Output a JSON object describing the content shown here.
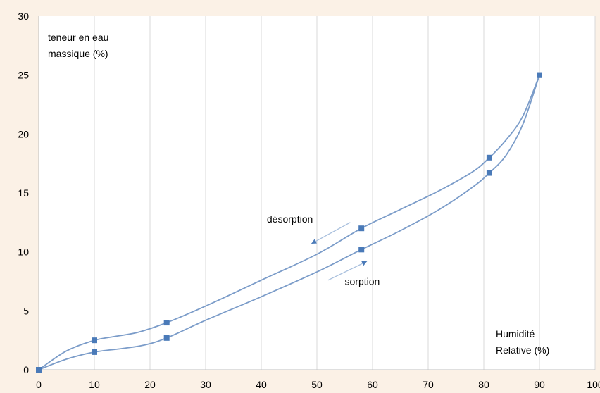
{
  "chart_data": {
    "type": "line",
    "ylabel_lines": [
      "teneur en eau",
      "massique (%)"
    ],
    "xlabel_lines": [
      "Humidité",
      "Relative (%)"
    ],
    "xlim": [
      0,
      100
    ],
    "ylim": [
      0,
      30
    ],
    "xticks": [
      "0",
      "10",
      "20",
      "30",
      "40",
      "50",
      "60",
      "70",
      "80",
      "90",
      "100"
    ],
    "yticks": [
      "0",
      "5",
      "10",
      "15",
      "20",
      "25",
      "30"
    ],
    "grid": "vertical",
    "series": [
      {
        "name": "désorption",
        "x": [
          0,
          10,
          23,
          58,
          81,
          90
        ],
        "y": [
          0,
          2.5,
          4.0,
          12.0,
          18.0,
          25.0
        ],
        "curve": [
          [
            0,
            0
          ],
          [
            5,
            1.6
          ],
          [
            10,
            2.5
          ],
          [
            14,
            2.85
          ],
          [
            18,
            3.2
          ],
          [
            23,
            4.0
          ],
          [
            30,
            5.4
          ],
          [
            40,
            7.6
          ],
          [
            50,
            9.8
          ],
          [
            58,
            12.0
          ],
          [
            65,
            13.6
          ],
          [
            72,
            15.2
          ],
          [
            78,
            16.8
          ],
          [
            81,
            18.0
          ],
          [
            84,
            19.5
          ],
          [
            87,
            21.5
          ],
          [
            90,
            25.0
          ]
        ]
      },
      {
        "name": "sorption",
        "x": [
          0,
          10,
          23,
          58,
          81,
          90
        ],
        "y": [
          0,
          1.5,
          2.7,
          10.2,
          16.7,
          25.0
        ],
        "curve": [
          [
            0,
            0
          ],
          [
            5,
            0.9
          ],
          [
            10,
            1.5
          ],
          [
            15,
            1.8
          ],
          [
            19,
            2.1
          ],
          [
            23,
            2.7
          ],
          [
            30,
            4.2
          ],
          [
            40,
            6.2
          ],
          [
            50,
            8.3
          ],
          [
            58,
            10.2
          ],
          [
            65,
            11.8
          ],
          [
            72,
            13.6
          ],
          [
            78,
            15.5
          ],
          [
            81,
            16.7
          ],
          [
            84,
            18.2
          ],
          [
            87,
            20.8
          ],
          [
            90,
            25.0
          ]
        ]
      }
    ],
    "annotations": [
      {
        "text": "désorption",
        "x": 41,
        "y": 12.5,
        "arrow_from": [
          56,
          12.5
        ],
        "arrow_to": [
          49,
          10.7
        ]
      },
      {
        "text": "sorption",
        "x": 55,
        "y": 7.2,
        "arrow_from": [
          52,
          7.6
        ],
        "arrow_to": [
          59,
          9.2
        ]
      }
    ],
    "colors": {
      "line": "#7b9cc9",
      "marker": "#4a7ab8",
      "background": "#fbf1e6"
    }
  }
}
